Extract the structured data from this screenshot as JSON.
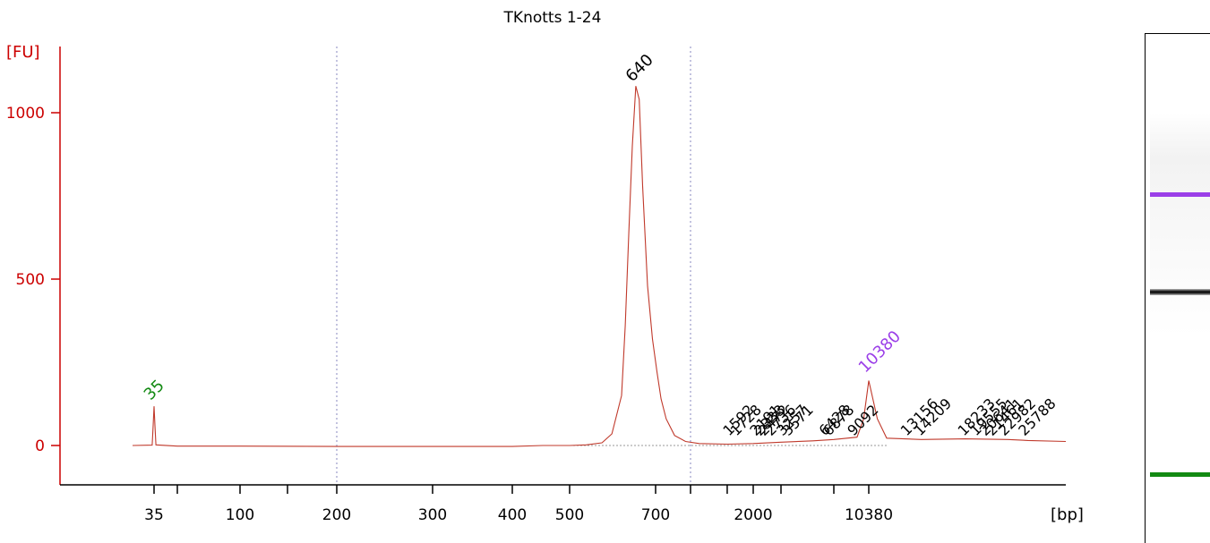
{
  "chart_data": {
    "type": "line",
    "title": "TKnotts 1-24",
    "ylabel": "[FU]",
    "xlabel": "[bp]",
    "ylim": [
      -115,
      1200
    ],
    "yticks": [
      0,
      500,
      1000
    ],
    "x_ticks": [
      "35",
      "100",
      "200",
      "300",
      "400",
      "500",
      "700",
      "2000",
      "10380"
    ],
    "x_minor_ticks": [
      "50",
      "150",
      "1000",
      "1500",
      "3000",
      "7000"
    ],
    "reference_lines_bp": [
      "200",
      "1000"
    ],
    "grid": false,
    "colors": {
      "trace": "#c0392b",
      "axis": "#cc0000",
      "lower_marker": "#138a13",
      "upper_marker": "#9b3fe8",
      "label": "#000000"
    },
    "trace_points": [
      {
        "bp": "25",
        "fu": 0
      },
      {
        "bp": "34",
        "fu": 1
      },
      {
        "bp": "34.5",
        "fu": 60
      },
      {
        "bp": "35",
        "fu": 118
      },
      {
        "bp": "35.5",
        "fu": 60
      },
      {
        "bp": "36",
        "fu": 2
      },
      {
        "bp": "50",
        "fu": -2
      },
      {
        "bp": "100",
        "fu": -2
      },
      {
        "bp": "200",
        "fu": -3
      },
      {
        "bp": "400",
        "fu": -3
      },
      {
        "bp": "450",
        "fu": 0
      },
      {
        "bp": "500",
        "fu": 0
      },
      {
        "bp": "530",
        "fu": 2
      },
      {
        "bp": "560",
        "fu": 8
      },
      {
        "bp": "580",
        "fu": 35
      },
      {
        "bp": "600",
        "fu": 150
      },
      {
        "bp": "610",
        "fu": 360
      },
      {
        "bp": "620",
        "fu": 640
      },
      {
        "bp": "630",
        "fu": 900
      },
      {
        "bp": "640",
        "fu": 1080
      },
      {
        "bp": "650",
        "fu": 1040
      },
      {
        "bp": "660",
        "fu": 780
      },
      {
        "bp": "675",
        "fu": 480
      },
      {
        "bp": "690",
        "fu": 320
      },
      {
        "bp": "710",
        "fu": 220
      },
      {
        "bp": "740",
        "fu": 140
      },
      {
        "bp": "780",
        "fu": 80
      },
      {
        "bp": "850",
        "fu": 30
      },
      {
        "bp": "950",
        "fu": 12
      },
      {
        "bp": "1100",
        "fu": 6
      },
      {
        "bp": "1500",
        "fu": 4
      },
      {
        "bp": "2000",
        "fu": 6
      },
      {
        "bp": "3000",
        "fu": 10
      },
      {
        "bp": "5000",
        "fu": 14
      },
      {
        "bp": "7000",
        "fu": 18
      },
      {
        "bp": "9092",
        "fu": 25
      },
      {
        "bp": "9800",
        "fu": 80
      },
      {
        "bp": "10380",
        "fu": 195
      },
      {
        "bp": "10900",
        "fu": 80
      },
      {
        "bp": "11500",
        "fu": 22
      },
      {
        "bp": "14000",
        "fu": 18
      },
      {
        "bp": "18000",
        "fu": 20
      },
      {
        "bp": "22982",
        "fu": 18
      },
      {
        "bp": "25788",
        "fu": 15
      },
      {
        "bp": "32000",
        "fu": 12
      }
    ],
    "main_peak": {
      "label": "640",
      "bp": "640",
      "fu": 1080
    },
    "lower_marker": {
      "label": "35",
      "bp": "35",
      "fu": 118
    },
    "upper_marker": {
      "label": "10380",
      "bp": "10380",
      "fu": 195
    },
    "minor_peak_labels": [
      {
        "label": "1592",
        "bp": "1592"
      },
      {
        "label": "1728",
        "bp": "1728"
      },
      {
        "label": "2191",
        "bp": "2191"
      },
      {
        "label": "2333",
        "bp": "2333"
      },
      {
        "label": "2472",
        "bp": "2472"
      },
      {
        "label": "2736",
        "bp": "2736"
      },
      {
        "label": "3257",
        "bp": "3257"
      },
      {
        "label": "3571",
        "bp": "3571"
      },
      {
        "label": "6428",
        "bp": "6428"
      },
      {
        "label": "6878",
        "bp": "6878"
      },
      {
        "label": "9092",
        "bp": "9092"
      },
      {
        "label": "13156",
        "bp": "13156"
      },
      {
        "label": "14209",
        "bp": "14209"
      },
      {
        "label": "18233",
        "bp": "18233"
      },
      {
        "label": "19555",
        "bp": "19555"
      },
      {
        "label": "20641",
        "bp": "20641"
      },
      {
        "label": "21461",
        "bp": "21461"
      },
      {
        "label": "22982",
        "bp": "22982"
      },
      {
        "label": "25788",
        "bp": "25788"
      }
    ]
  },
  "gel": {
    "bands": [
      {
        "name": "upper-marker",
        "color": "#9b3fe8",
        "level": 0.31,
        "thickness": 5
      },
      {
        "name": "sample-main",
        "color": "#1a1a1a",
        "level": 0.5,
        "thickness": 7
      },
      {
        "name": "lower-marker",
        "color": "#138a13",
        "level": 0.86,
        "thickness": 5
      }
    ]
  }
}
